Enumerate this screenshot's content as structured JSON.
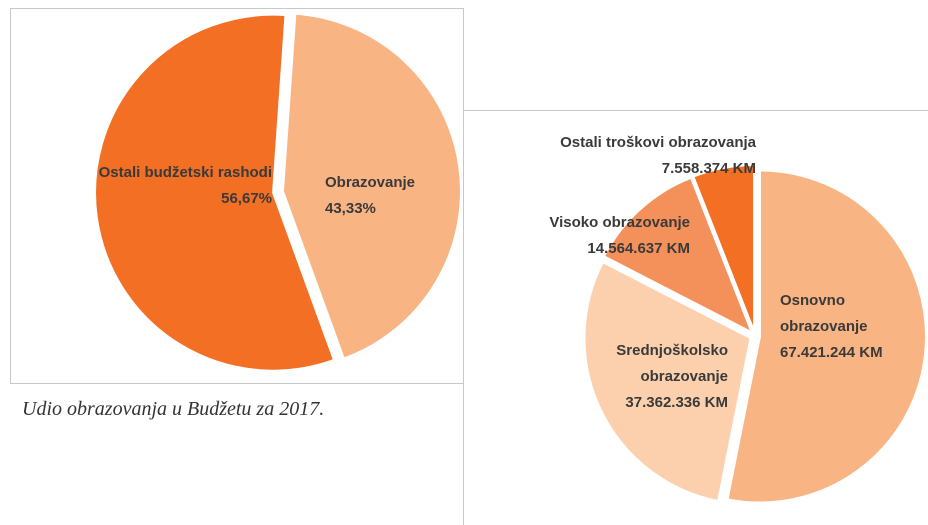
{
  "chart_data": [
    {
      "type": "pie",
      "caption": "Udio obrazovanja u Budžetu za 2017.",
      "categories": [
        "Obrazovanje",
        "Ostali budžetski rashodi"
      ],
      "values": [
        43.33,
        56.67
      ],
      "value_labels": [
        "43,33%",
        "56,67%"
      ],
      "colors": [
        "#f9b483",
        "#f26f23"
      ]
    },
    {
      "type": "pie",
      "categories": [
        "Osnovno obrazovanje",
        "Srednjoškolsko obrazovanje",
        "Visoko obrazovanje",
        "Ostali troškovi obrazovanja"
      ],
      "values": [
        67421244,
        37362336,
        14564637,
        7558374
      ],
      "value_labels": [
        "67.421.244 KM",
        "37.362.336 KM",
        "14.564.637 KM",
        "7.558.374 KM"
      ],
      "colors": [
        "#f9b483",
        "#fcd0ac",
        "#f4905a",
        "#f26f23"
      ]
    }
  ]
}
